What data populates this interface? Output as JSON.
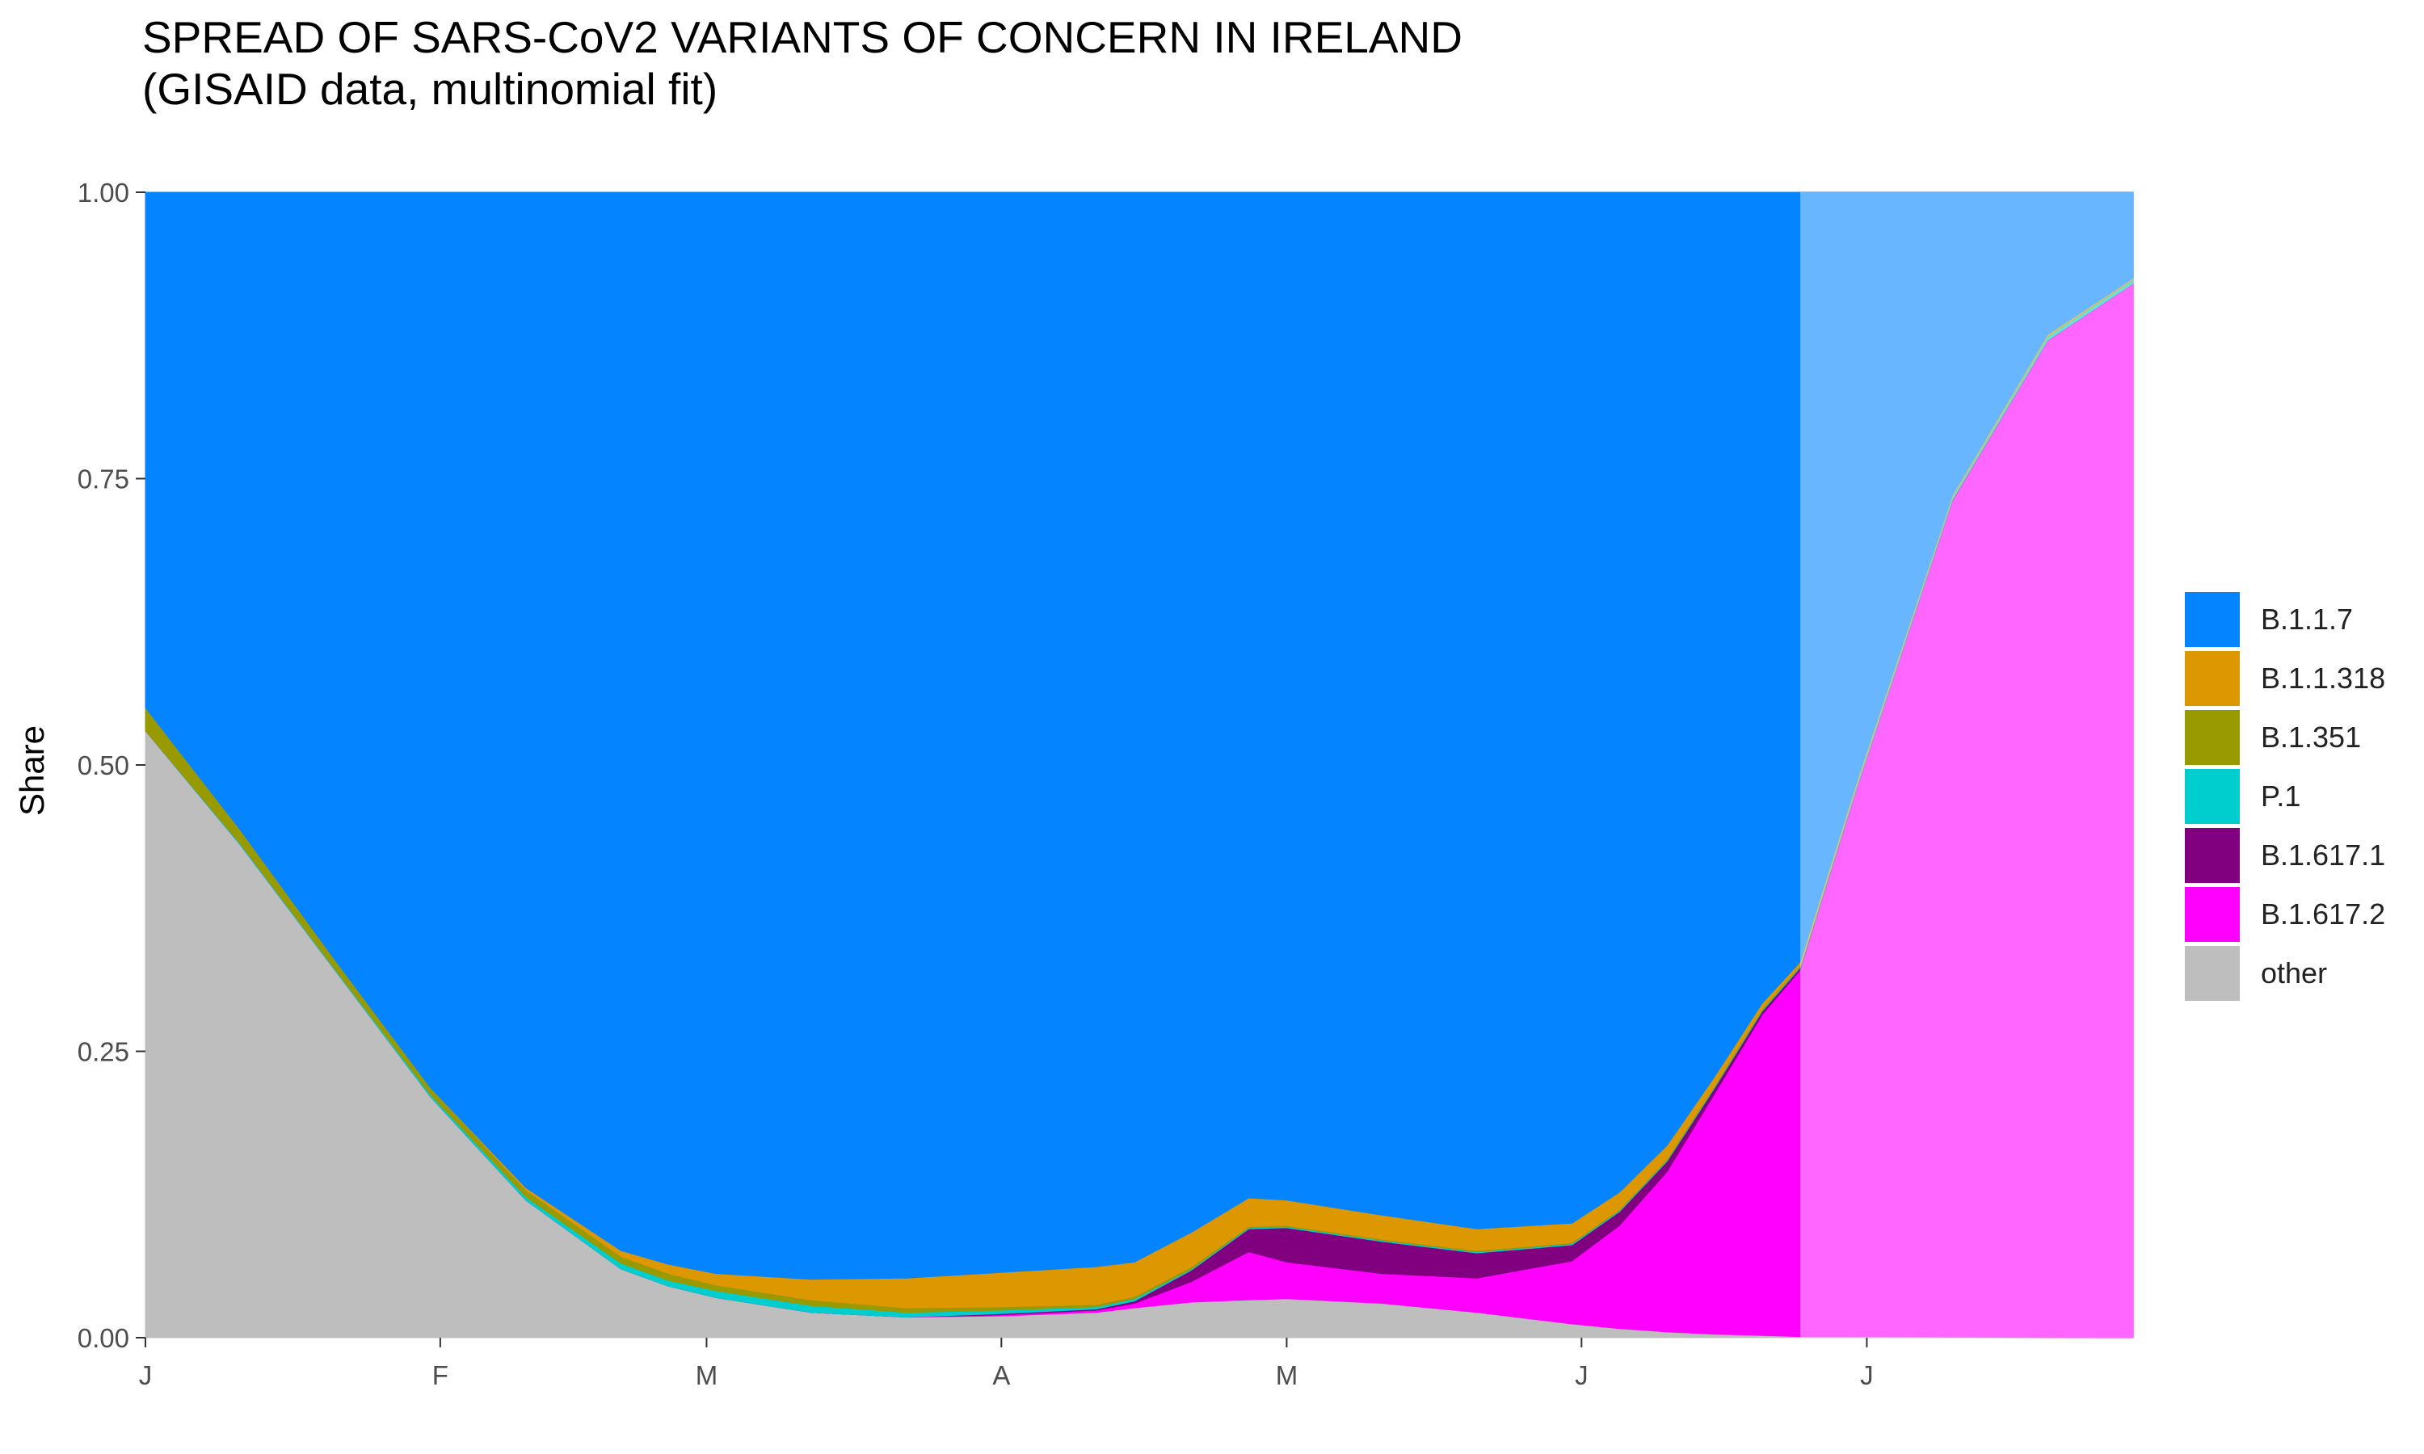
{
  "title": "SPREAD OF SARS-CoV2 VARIANTS OF CONCERN IN IRELAND",
  "subtitle": "(GISAID data, multinomial fit)",
  "chart_data": {
    "type": "area",
    "stacked": true,
    "normalized": true,
    "ylabel": "Share",
    "xlabel": "",
    "ylim": [
      0,
      1
    ],
    "yticks": [
      "0.00",
      "0.25",
      "0.50",
      "0.75",
      "1.00"
    ],
    "xlim_day": [
      0,
      209
    ],
    "xticks": [
      {
        "label": "J",
        "day": 0
      },
      {
        "label": "F",
        "day": 31
      },
      {
        "label": "M",
        "day": 59
      },
      {
        "label": "A",
        "day": 90
      },
      {
        "label": "M",
        "day": 120
      },
      {
        "label": "J",
        "day": 151
      },
      {
        "label": "J",
        "day": 181
      }
    ],
    "forecast_from_day": 174,
    "x_day": [
      0,
      10,
      20,
      30,
      40,
      50,
      55,
      60,
      70,
      80,
      90,
      100,
      104,
      110,
      116,
      120,
      130,
      140,
      150,
      155,
      160,
      165,
      170,
      174,
      180,
      190,
      200,
      209
    ],
    "series": [
      {
        "name": "other",
        "color": "#BEBEBE",
        "values": [
          0.53,
          0.43,
          0.32,
          0.21,
          0.12,
          0.06,
          0.045,
          0.035,
          0.022,
          0.018,
          0.019,
          0.022,
          0.026,
          0.031,
          0.033,
          0.034,
          0.03,
          0.022,
          0.012,
          0.008,
          0.005,
          0.003,
          0.002,
          0.001,
          0.001,
          0.0005,
          0.0002,
          0.0001
        ]
      },
      {
        "name": "B.1.617.2",
        "color": "#FF00FF",
        "values": [
          0,
          0,
          0,
          0,
          0,
          0,
          0,
          0,
          0,
          0,
          0.001,
          0.002,
          0.004,
          0.018,
          0.042,
          0.032,
          0.026,
          0.03,
          0.055,
          0.09,
          0.14,
          0.21,
          0.28,
          0.32,
          0.48,
          0.73,
          0.87,
          0.92
        ]
      },
      {
        "name": "B.1.617.1",
        "color": "#800080",
        "values": [
          0,
          0,
          0,
          0,
          0,
          0,
          0,
          0,
          0,
          0,
          0.001,
          0.001,
          0.002,
          0.01,
          0.02,
          0.03,
          0.028,
          0.022,
          0.014,
          0.012,
          0.009,
          0.005,
          0.003,
          0.002,
          0.001,
          0.001,
          0.0005,
          0.0003
        ]
      },
      {
        "name": "P.1",
        "color": "#00CDCD",
        "values": [
          0,
          0.001,
          0.001,
          0.002,
          0.003,
          0.005,
          0.005,
          0.006,
          0.006,
          0.004,
          0.003,
          0.002,
          0.002,
          0.001,
          0.001,
          0.001,
          0.001,
          0.001,
          0.001,
          0.001,
          0.001,
          0.001,
          0.001,
          0.001,
          0.002,
          0.002,
          0.003,
          0.003
        ]
      },
      {
        "name": "B.1.351",
        "color": "#999900",
        "values": [
          0.02,
          0.012,
          0.008,
          0.006,
          0.006,
          0.006,
          0.006,
          0.005,
          0.005,
          0.004,
          0.003,
          0.002,
          0.002,
          0.002,
          0.001,
          0.001,
          0.001,
          0.001,
          0.001,
          0.001,
          0.001,
          0.001,
          0.001,
          0.001,
          0.001,
          0.001,
          0.001,
          0.001
        ]
      },
      {
        "name": "B.1.1.318",
        "color": "#DD9700",
        "values": [
          0,
          0,
          0,
          0,
          0.002,
          0.005,
          0.008,
          0.01,
          0.018,
          0.026,
          0.03,
          0.033,
          0.03,
          0.03,
          0.025,
          0.022,
          0.021,
          0.019,
          0.017,
          0.015,
          0.012,
          0.008,
          0.005,
          0.003,
          0.002,
          0.001,
          0.001,
          0.0005
        ]
      },
      {
        "name": "B.1.1.7",
        "color": "#0485FF",
        "values": [
          0.45,
          0.557,
          0.671,
          0.782,
          0.869,
          0.924,
          0.936,
          0.944,
          0.949,
          0.948,
          0.943,
          0.938,
          0.934,
          0.908,
          0.878,
          0.88,
          0.893,
          0.905,
          0.9,
          0.873,
          0.832,
          0.772,
          0.708,
          0.672,
          0.513,
          0.265,
          0.125,
          0.075
        ]
      }
    ],
    "legend": {
      "placement": "right",
      "entries": [
        {
          "label": "B.1.1.7",
          "color": "#0485FF"
        },
        {
          "label": "B.1.1.318",
          "color": "#DD9700"
        },
        {
          "label": "B.1.351",
          "color": "#999900"
        },
        {
          "label": "P.1",
          "color": "#00CDCD"
        },
        {
          "label": "B.1.617.1",
          "color": "#800080"
        },
        {
          "label": "B.1.617.2",
          "color": "#FF00FF"
        },
        {
          "label": "other",
          "color": "#BEBEBE"
        }
      ]
    },
    "grid": false
  }
}
